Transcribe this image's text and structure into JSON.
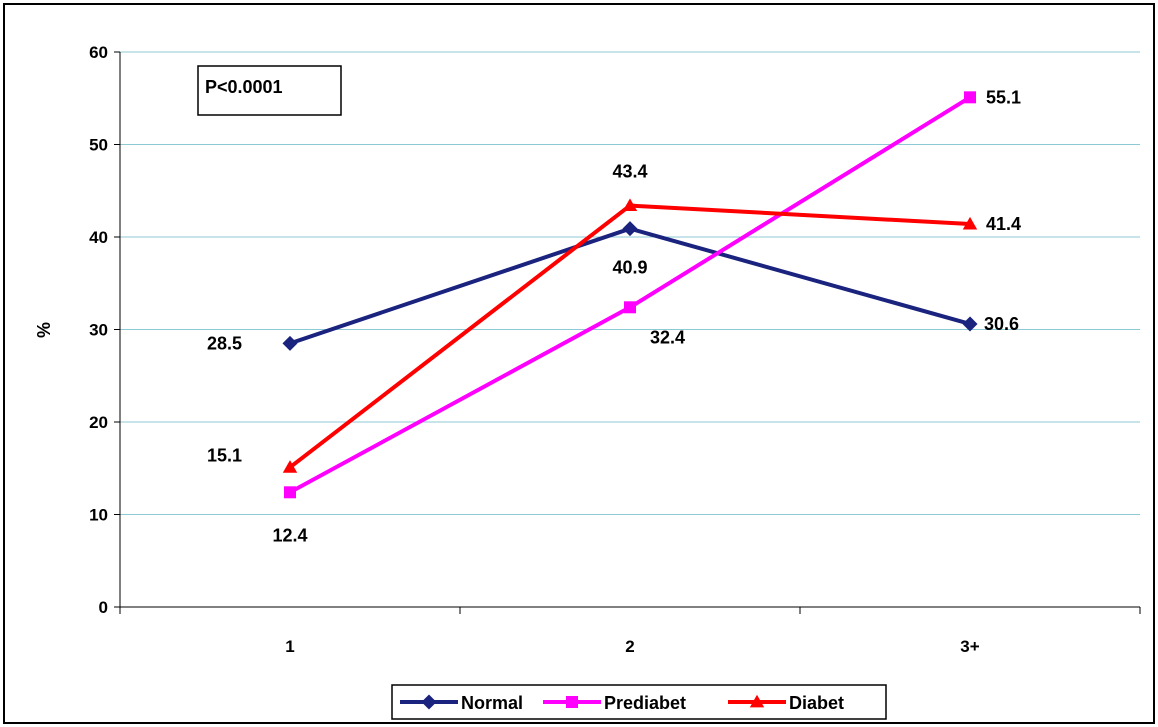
{
  "chart_data": {
    "type": "line",
    "title": "",
    "xlabel": "",
    "ylabel": "%",
    "categories": [
      "1",
      "2",
      "3+"
    ],
    "ylim": [
      0,
      60
    ],
    "yticks": [
      0,
      10,
      20,
      30,
      40,
      50,
      60
    ],
    "grid": true,
    "legend_position": "bottom",
    "annotation": "P<0.0001",
    "series": [
      {
        "name": "Normal",
        "values": [
          28.5,
          40.9,
          30.6
        ],
        "labels": [
          "28.5",
          "40.9",
          "30.6"
        ],
        "color": "#1a237e",
        "marker": "diamond"
      },
      {
        "name": "Prediabet",
        "values": [
          12.4,
          32.4,
          55.1
        ],
        "labels": [
          "12.4",
          "32.4",
          "55.1"
        ],
        "color": "#ff00ff",
        "marker": "square"
      },
      {
        "name": "Diabet",
        "values": [
          15.1,
          43.4,
          41.4
        ],
        "labels": [
          "15.1",
          "43.4",
          "41.4"
        ],
        "color": "#ff0000",
        "marker": "triangle"
      }
    ]
  }
}
